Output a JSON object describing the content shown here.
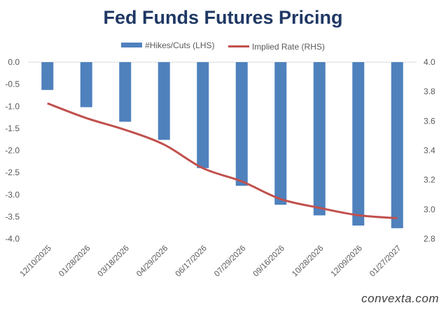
{
  "chart_data": {
    "type": "bar+line",
    "title": "Fed Funds Futures Pricing",
    "categories": [
      "12/10/2025",
      "01/28/2026",
      "03/18/2026",
      "04/29/2026",
      "06/17/2026",
      "07/29/2026",
      "09/16/2026",
      "10/28/2026",
      "12/09/2026",
      "01/27/2027"
    ],
    "series": [
      {
        "name": "#Hikes/Cuts (LHS)",
        "type": "bar",
        "axis": "left",
        "color": "#4f81bd",
        "values": [
          -0.63,
          -1.02,
          -1.35,
          -1.76,
          -2.4,
          -2.8,
          -3.23,
          -3.47,
          -3.7,
          -3.76
        ]
      },
      {
        "name": "Implied Rate (RHS)",
        "type": "line",
        "axis": "right",
        "color": "#c0504d",
        "values": [
          3.72,
          3.62,
          3.54,
          3.44,
          3.28,
          3.19,
          3.07,
          3.01,
          2.96,
          2.94
        ]
      }
    ],
    "left_axis": {
      "min": -4.0,
      "max": 0.0,
      "ticks": [
        "0.0",
        "-0.5",
        "-1.0",
        "-1.5",
        "-2.0",
        "-2.5",
        "-3.0",
        "-3.5",
        "-4.0"
      ]
    },
    "right_axis": {
      "min": 2.8,
      "max": 4.0,
      "ticks": [
        "4.0",
        "3.8",
        "3.6",
        "3.4",
        "3.2",
        "3.0",
        "2.8"
      ]
    },
    "legend_position": "top"
  },
  "watermark": "convexta.com"
}
